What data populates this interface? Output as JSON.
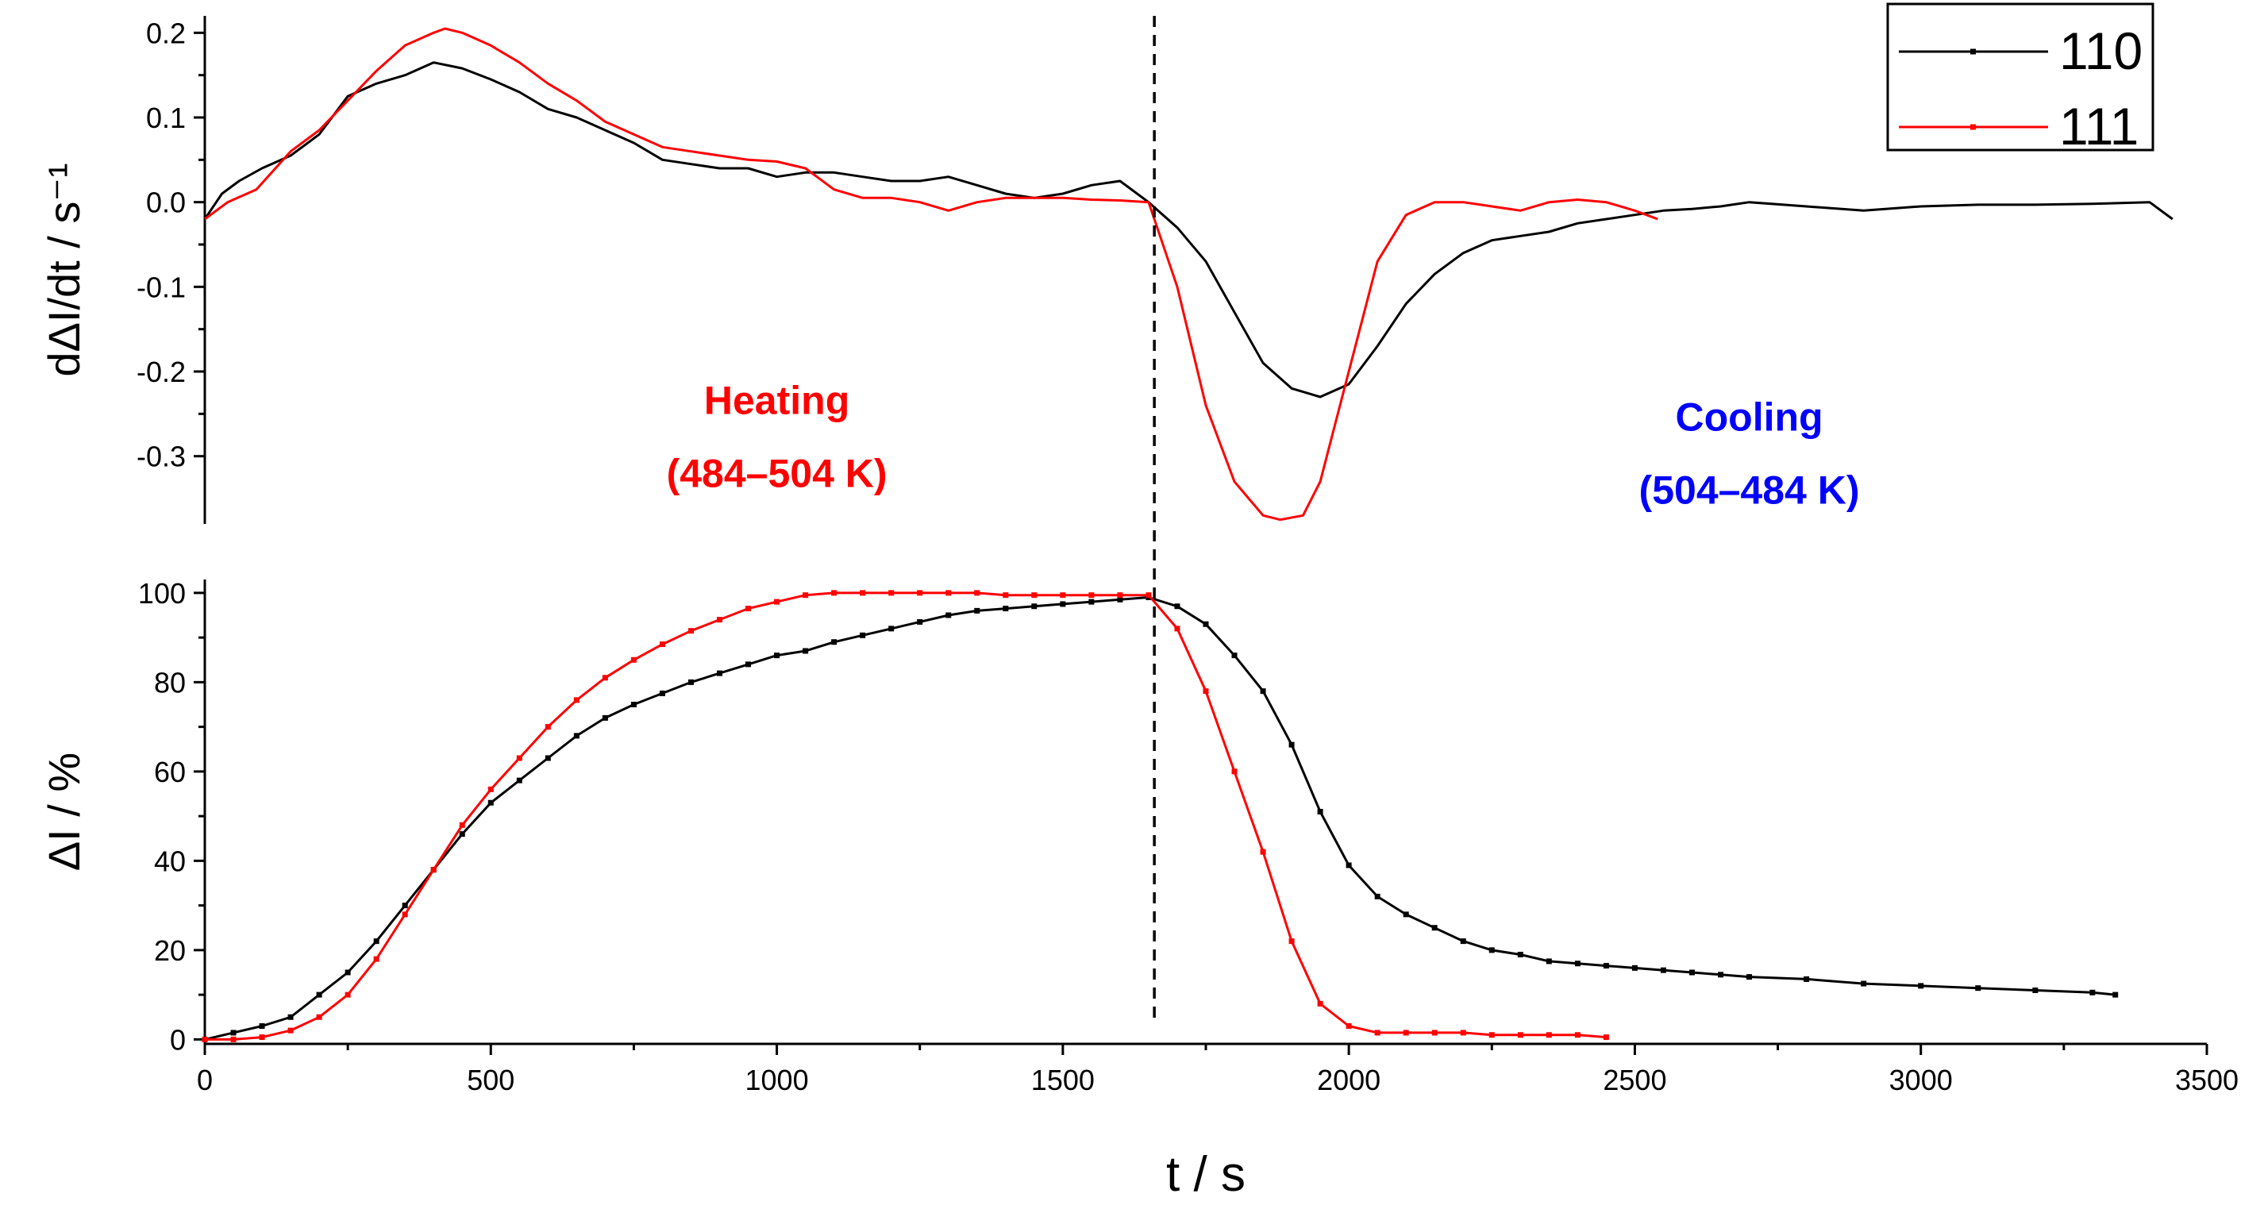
{
  "chart_data": {
    "type": "line",
    "x_axis": {
      "label": "t / s",
      "range": [
        0,
        3500
      ],
      "ticks": [
        0,
        500,
        1000,
        1500,
        2000,
        2500,
        3000,
        3500
      ],
      "tick_labels": [
        "0",
        "500",
        "1000",
        "1500",
        "2000",
        "2500",
        "3000",
        "3500"
      ]
    },
    "divider_x": 1660,
    "legend": {
      "placement": "top-right",
      "entries": [
        {
          "name": "110",
          "color": "#000000"
        },
        {
          "name": "111",
          "color": "#ff0000"
        }
      ]
    },
    "annotations": [
      {
        "lines": [
          "Heating",
          "(484–504 K)"
        ],
        "color": "#ff0000",
        "x": 1000,
        "y": -0.25,
        "panel": "top"
      },
      {
        "lines": [
          "Cooling",
          "(504–484 K)"
        ],
        "color": "#0000ff",
        "x": 2700,
        "y": -0.27,
        "panel": "top"
      }
    ],
    "panels": [
      {
        "id": "top",
        "ylabel": "dΔI/dt / s⁻¹",
        "ylim": [
          -0.38,
          0.22
        ],
        "yticks": [
          0.2,
          0.1,
          0.0,
          -0.1,
          -0.2,
          -0.3
        ],
        "ytick_labels": [
          "0.2",
          "0.1",
          "0.0",
          "-0.1",
          "-0.2",
          "-0.3"
        ],
        "series": [
          {
            "name": "110",
            "color": "#000000",
            "markers": false,
            "x": [
              0,
              30,
              60,
              100,
              150,
              200,
              250,
              300,
              350,
              400,
              450,
              500,
              550,
              600,
              650,
              700,
              750,
              800,
              850,
              900,
              950,
              1000,
              1050,
              1100,
              1150,
              1200,
              1250,
              1300,
              1350,
              1400,
              1450,
              1500,
              1550,
              1600,
              1650,
              1700,
              1750,
              1800,
              1850,
              1900,
              1950,
              2000,
              2050,
              2100,
              2150,
              2200,
              2250,
              2300,
              2350,
              2400,
              2450,
              2500,
              2550,
              2600,
              2650,
              2700,
              2800,
              2900,
              3000,
              3100,
              3200,
              3300,
              3400,
              3440
            ],
            "y": [
              -0.02,
              0.01,
              0.025,
              0.04,
              0.055,
              0.08,
              0.125,
              0.14,
              0.15,
              0.165,
              0.158,
              0.145,
              0.13,
              0.11,
              0.1,
              0.085,
              0.07,
              0.05,
              0.045,
              0.04,
              0.04,
              0.03,
              0.035,
              0.035,
              0.03,
              0.025,
              0.025,
              0.03,
              0.02,
              0.01,
              0.005,
              0.01,
              0.02,
              0.025,
              0.0,
              -0.03,
              -0.07,
              -0.13,
              -0.19,
              -0.22,
              -0.23,
              -0.215,
              -0.17,
              -0.12,
              -0.085,
              -0.06,
              -0.045,
              -0.04,
              -0.035,
              -0.025,
              -0.02,
              -0.015,
              -0.01,
              -0.008,
              -0.005,
              0.0,
              -0.005,
              -0.01,
              -0.005,
              -0.003,
              -0.003,
              -0.002,
              0.0,
              -0.02
            ]
          },
          {
            "name": "111",
            "color": "#ff0000",
            "markers": false,
            "x": [
              0,
              40,
              90,
              150,
              200,
              250,
              300,
              350,
              400,
              420,
              450,
              500,
              550,
              600,
              650,
              700,
              750,
              800,
              850,
              900,
              950,
              1000,
              1050,
              1100,
              1150,
              1200,
              1250,
              1300,
              1350,
              1400,
              1450,
              1500,
              1550,
              1600,
              1650,
              1700,
              1750,
              1800,
              1850,
              1880,
              1920,
              1950,
              2000,
              2050,
              2100,
              2150,
              2200,
              2300,
              2350,
              2400,
              2450,
              2500,
              2540
            ],
            "y": [
              -0.02,
              0.0,
              0.015,
              0.06,
              0.085,
              0.12,
              0.155,
              0.185,
              0.2,
              0.205,
              0.2,
              0.185,
              0.165,
              0.14,
              0.12,
              0.095,
              0.08,
              0.065,
              0.06,
              0.055,
              0.05,
              0.048,
              0.04,
              0.015,
              0.005,
              0.005,
              0.0,
              -0.01,
              0.0,
              0.005,
              0.005,
              0.005,
              0.003,
              0.002,
              0.0,
              -0.1,
              -0.24,
              -0.33,
              -0.37,
              -0.375,
              -0.37,
              -0.33,
              -0.2,
              -0.07,
              -0.015,
              0.0,
              0.0,
              -0.01,
              0.0,
              0.003,
              0.0,
              -0.01,
              -0.02
            ]
          }
        ]
      },
      {
        "id": "bottom",
        "ylabel": "ΔI / %",
        "ylim": [
          -1,
          103
        ],
        "yticks": [
          0,
          20,
          40,
          60,
          80,
          100
        ],
        "ytick_labels": [
          "0",
          "20",
          "40",
          "60",
          "80",
          "100"
        ],
        "series": [
          {
            "name": "110",
            "color": "#000000",
            "markers": true,
            "x": [
              0,
              50,
              100,
              150,
              200,
              250,
              300,
              350,
              400,
              450,
              500,
              550,
              600,
              650,
              700,
              750,
              800,
              850,
              900,
              950,
              1000,
              1050,
              1100,
              1150,
              1200,
              1250,
              1300,
              1350,
              1400,
              1450,
              1500,
              1550,
              1600,
              1650,
              1700,
              1750,
              1800,
              1850,
              1900,
              1950,
              2000,
              2050,
              2100,
              2150,
              2200,
              2250,
              2300,
              2350,
              2400,
              2450,
              2500,
              2550,
              2600,
              2650,
              2700,
              2800,
              2900,
              3000,
              3100,
              3200,
              3300,
              3340
            ],
            "y": [
              0,
              1.5,
              3,
              5,
              10,
              15,
              22,
              30,
              38,
              46,
              53,
              58,
              63,
              68,
              72,
              75,
              77.5,
              80,
              82,
              84,
              86,
              87,
              89,
              90.5,
              92,
              93.5,
              95,
              96,
              96.5,
              97,
              97.5,
              98,
              98.5,
              99,
              97,
              93,
              86,
              78,
              66,
              51,
              39,
              32,
              28,
              25,
              22,
              20,
              19,
              17.5,
              17,
              16.5,
              16,
              15.5,
              15,
              14.5,
              14,
              13.5,
              12.5,
              12,
              11.5,
              11,
              10.5,
              10
            ]
          },
          {
            "name": "111",
            "color": "#ff0000",
            "markers": true,
            "x": [
              0,
              50,
              100,
              150,
              200,
              250,
              300,
              350,
              400,
              450,
              500,
              550,
              600,
              650,
              700,
              750,
              800,
              850,
              900,
              950,
              1000,
              1050,
              1100,
              1150,
              1200,
              1250,
              1300,
              1350,
              1400,
              1450,
              1500,
              1550,
              1600,
              1650,
              1700,
              1750,
              1800,
              1850,
              1900,
              1950,
              2000,
              2050,
              2100,
              2150,
              2200,
              2250,
              2300,
              2350,
              2400,
              2450
            ],
            "y": [
              0,
              0,
              0.5,
              2,
              5,
              10,
              18,
              28,
              38,
              48,
              56,
              63,
              70,
              76,
              81,
              85,
              88.5,
              91.5,
              94,
              96.5,
              98,
              99.5,
              100,
              100,
              100,
              100,
              100,
              100,
              99.5,
              99.5,
              99.5,
              99.5,
              99.5,
              99.5,
              92,
              78,
              60,
              42,
              22,
              8,
              3,
              1.5,
              1.5,
              1.5,
              1.5,
              1,
              1,
              1,
              1,
              0.5
            ]
          }
        ]
      }
    ]
  }
}
